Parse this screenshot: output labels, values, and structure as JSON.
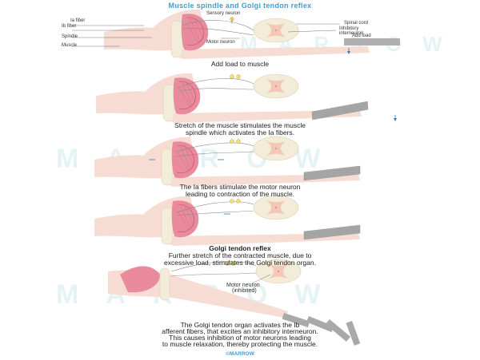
{
  "title": "Muscle spindle and Golgi tendon reflex",
  "watermark": "MARROW",
  "copyright": "©MARROW",
  "panel1": {
    "labels": {
      "ia_fiber": "Ia fiber",
      "ib_fiber": "Ib fiber",
      "spindle": "Spindle",
      "muscle": "Muscle",
      "sensory_neuron": "Sensory neuron",
      "motor_neuron": "Motor neuron",
      "spinal_cord": "Spinal cord",
      "inhibitory_interneuron_1": "Inhibitory",
      "inhibitory_interneuron_2": "interneuron",
      "add_load": "Add load"
    },
    "caption": "Add load to muscle"
  },
  "panel2": {
    "caption_1": "Stretch of the muscle stimulates the muscle",
    "caption_2": "spindle which activates the Ia fibers."
  },
  "panel3": {
    "caption_1": "The Ia fibers stimulate the motor neuron",
    "caption_2": "leading to contraction of the muscle."
  },
  "panel4": {
    "heading": "Golgi tendon reflex",
    "caption_1": "Further stretch of the contracted muscle, due to",
    "caption_2": "excessive load, stimulates the Golgi tendon organ."
  },
  "panel5": {
    "labels": {
      "motor_neuron": "Motor neuron",
      "inhibited": "(inhibited)"
    },
    "caption_1": "The Golgi tendon organ activates the Ib",
    "caption_2": "afferent fibers, that excites an inhibitory interneuron.",
    "caption_3": "This causes inhibition of motor neurons leading",
    "caption_4": "to muscle relaxation, thereby protecting the muscle."
  },
  "colors": {
    "title": "#3a9fd8",
    "skin": "#f6dcd2",
    "muscle": "#e98b9c",
    "cord": "#f2ecd8",
    "load": "#a9a9a9"
  }
}
